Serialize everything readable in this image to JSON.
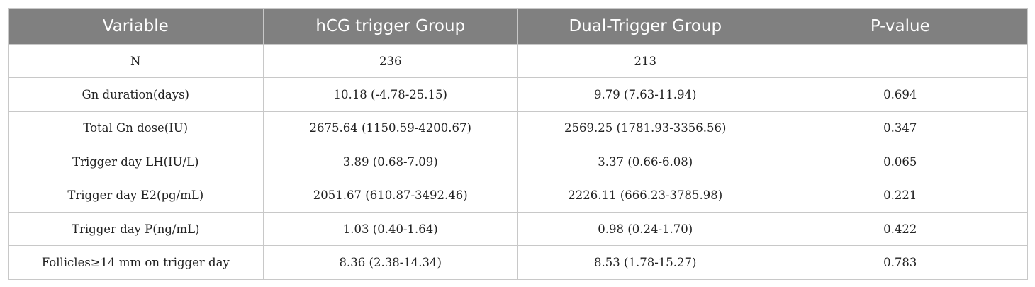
{
  "table": {
    "headers": [
      "Variable",
      "hCG trigger Group",
      "Dual-Trigger Group",
      "P-value"
    ],
    "rows": [
      [
        "N",
        "236",
        "213",
        ""
      ],
      [
        "Gn duration(days)",
        "10.18 (-4.78-25.15)",
        "9.79 (7.63-11.94)",
        "0.694"
      ],
      [
        "Total Gn dose(IU)",
        "2675.64 (1150.59-4200.67)",
        "2569.25 (1781.93-3356.56)",
        "0.347"
      ],
      [
        "Trigger day LH(IU/L)",
        "3.89 (0.68-7.09)",
        "3.37 (0.66-6.08)",
        "0.065"
      ],
      [
        "Trigger day E2(pg/mL)",
        "2051.67 (610.87-3492.46)",
        "2226.11 (666.23-3785.98)",
        "0.221"
      ],
      [
        "Trigger day P(ng/mL)",
        "1.03 (0.40-1.64)",
        "0.98 (0.24-1.70)",
        "0.422"
      ],
      [
        "Follicles≥14 mm on trigger day",
        "8.36 (2.38-14.34)",
        "8.53 (1.78-15.27)",
        "0.783"
      ]
    ]
  },
  "colors": {
    "header_background": "#808080",
    "header_text": "#ffffff",
    "grid_lines": "#c8c8c8"
  }
}
